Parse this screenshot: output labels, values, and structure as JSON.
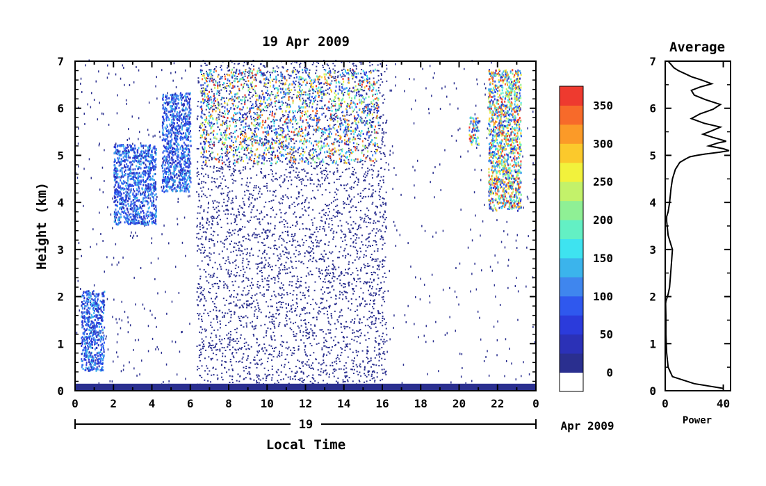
{
  "chart_data": [
    {
      "type": "heatmap",
      "title": "19 Apr 2009",
      "xlabel": "Local Time",
      "ylabel": "Height (km)",
      "xlim": [
        0,
        24
      ],
      "ylim": [
        0,
        7
      ],
      "x_ticks": [
        "0",
        "2",
        "4",
        "6",
        "8",
        "10",
        "12",
        "14",
        "16",
        "18",
        "20",
        "22",
        "0"
      ],
      "y_ticks": [
        "0",
        "1",
        "2",
        "3",
        "4",
        "5",
        "6",
        "7"
      ],
      "date_axis": {
        "day_label": "19",
        "month_label": "Apr 2009"
      },
      "colorbar": {
        "ticks": [
          "0",
          "50",
          "100",
          "150",
          "200",
          "250",
          "300",
          "350"
        ],
        "range": [
          -25,
          375
        ],
        "colors": [
          "#ffffff",
          "#2a2f8f",
          "#2b31b7",
          "#2b3bdb",
          "#2f58ee",
          "#3f86ee",
          "#3bb4ec",
          "#3ee3f0",
          "#63f0c4",
          "#8ff095",
          "#c3f26a",
          "#f2f23c",
          "#fbc92c",
          "#fb9a28",
          "#f76a2a",
          "#ee3a2f"
        ]
      },
      "features": [
        {
          "desc": "surface layer",
          "t": [
            0,
            24
          ],
          "h": [
            0,
            0.15
          ]
        },
        {
          "desc": "cloud",
          "t": [
            0.3,
            1.5
          ],
          "h": [
            0.4,
            2.1
          ]
        },
        {
          "desc": "cloud",
          "t": [
            2,
            4.2
          ],
          "h": [
            3.5,
            5.2
          ]
        },
        {
          "desc": "cloud",
          "t": [
            4.5,
            6
          ],
          "h": [
            4.2,
            6.3
          ]
        },
        {
          "desc": "cloud",
          "t": [
            6.5,
            15.8
          ],
          "h": [
            4.8,
            6.8
          ]
        },
        {
          "desc": "noise",
          "t": [
            6.3,
            16.2
          ],
          "h": [
            0,
            7
          ]
        },
        {
          "desc": "cloud",
          "t": [
            20.5,
            21
          ],
          "h": [
            5.2,
            5.8
          ]
        },
        {
          "desc": "cloud",
          "t": [
            21.5,
            23.2
          ],
          "h": [
            3.8,
            6.8
          ]
        }
      ]
    },
    {
      "type": "line",
      "title": "Average",
      "xlabel": "Power",
      "xlim": [
        0,
        45
      ],
      "ylim": [
        0,
        7
      ],
      "x_ticks": [
        "0",
        "40"
      ],
      "y_ticks": [
        "0",
        "1",
        "2",
        "3",
        "4",
        "5",
        "6",
        "7"
      ],
      "series": [
        {
          "x": [
            40,
            20,
            5,
            2,
            1,
            0.5,
            0.5,
            0.3,
            0.5,
            1,
            1.5,
            2,
            3,
            4,
            5,
            2,
            1,
            1,
            2,
            3,
            4,
            5,
            7,
            10,
            14,
            17,
            22,
            28,
            38,
            44,
            40,
            30,
            36,
            42,
            33,
            26,
            32,
            38,
            27,
            18,
            24,
            33,
            38,
            28,
            20,
            18,
            24,
            32,
            25,
            18,
            14,
            9,
            6,
            4,
            2
          ],
          "y": [
            0.05,
            0.15,
            0.3,
            0.5,
            0.8,
            1.2,
            1.6,
            1.85,
            1.9,
            1.95,
            2.0,
            2.05,
            2.2,
            2.6,
            3.0,
            3.3,
            3.6,
            3.7,
            3.8,
            4.0,
            4.3,
            4.5,
            4.7,
            4.85,
            4.92,
            4.97,
            5.0,
            5.03,
            5.07,
            5.1,
            5.14,
            5.2,
            5.26,
            5.3,
            5.38,
            5.45,
            5.52,
            5.6,
            5.68,
            5.78,
            5.88,
            5.98,
            6.08,
            6.18,
            6.28,
            6.38,
            6.45,
            6.52,
            6.6,
            6.67,
            6.73,
            6.8,
            6.86,
            6.93,
            7.0
          ]
        }
      ]
    }
  ]
}
